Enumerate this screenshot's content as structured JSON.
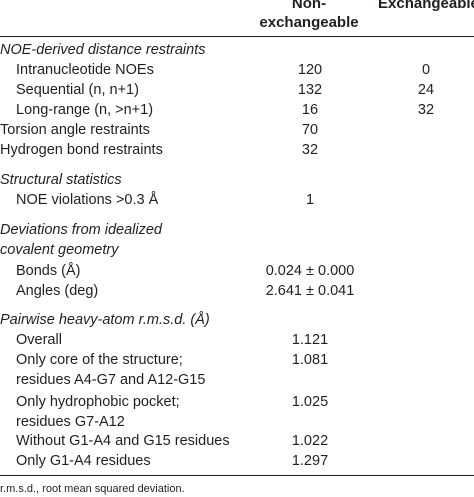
{
  "header": {
    "col1": "Non-\nexchangeable",
    "col1_line1": "Non-",
    "col1_line2": "exchangeable",
    "col2": "Exchangeable"
  },
  "rows": [
    {
      "label": "NOE-derived distance restraints",
      "style": "section"
    },
    {
      "label": "Intranucleotide NOEs",
      "v1": "120",
      "v2": "0",
      "style": "indent"
    },
    {
      "label": "Sequential (n, n+1)",
      "v1": "132",
      "v2": "24",
      "style": "indent"
    },
    {
      "label": "Long-range (n, >n+1)",
      "v1": "16",
      "v2": "32",
      "style": "indent"
    },
    {
      "label": "Torsion angle restraints",
      "v1": "70",
      "style": "plain"
    },
    {
      "label": "Hydrogen bond restraints",
      "v1": "32",
      "style": "plain"
    },
    {
      "label": "Structural statistics",
      "style": "section"
    },
    {
      "label": "NOE violations >0.3 Å",
      "v1": "1",
      "style": "indent"
    },
    {
      "label": "Deviations from idealized",
      "style": "section"
    },
    {
      "label": "covalent geometry",
      "style": "section"
    },
    {
      "label": "Bonds (Å)",
      "v1": "0.024 ± 0.000",
      "style": "indent"
    },
    {
      "label": "Angles (deg)",
      "v1": "2.641 ± 0.041",
      "style": "indent"
    },
    {
      "label": "Pairwise heavy-atom r.m.s.d. (Å)",
      "style": "section"
    },
    {
      "label": "Overall",
      "v1": "1.121",
      "style": "indent"
    },
    {
      "label": "Only core of the structure;",
      "v1": "1.081",
      "style": "indent"
    },
    {
      "label": "residues A4-G7 and A12-G15",
      "style": "indent"
    },
    {
      "label": "Only hydrophobic pocket;",
      "v1": "1.025",
      "style": "indent"
    },
    {
      "label": "residues G7-A12",
      "style": "indent"
    },
    {
      "label": "Without G1-A4 and G15 residues",
      "v1": "1.022",
      "style": "indent"
    },
    {
      "label": "Only G1-A4 residues",
      "v1": "1.297",
      "style": "indent"
    }
  ],
  "footnote": "r.m.s.d., root mean squared deviation."
}
